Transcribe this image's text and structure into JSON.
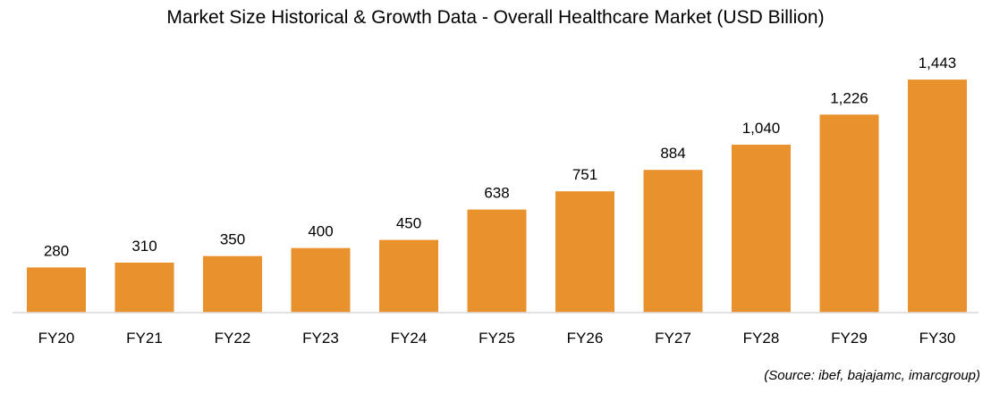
{
  "chart_data": {
    "type": "bar",
    "title": "Market Size Historical & Growth Data - Overall Healthcare Market (USD Billion)",
    "xlabel": "",
    "ylabel": "",
    "categories": [
      "FY20",
      "FY21",
      "FY22",
      "FY23",
      "FY24",
      "FY25",
      "FY26",
      "FY27",
      "FY28",
      "FY29",
      "FY30"
    ],
    "values": [
      280,
      310,
      350,
      400,
      450,
      638,
      751,
      884,
      1040,
      1226,
      1443
    ],
    "value_labels": [
      "280",
      "310",
      "350",
      "400",
      "450",
      "638",
      "751",
      "884",
      "1,040",
      "1,226",
      "1,443"
    ],
    "ylim": [
      0,
      1600
    ],
    "grid": false,
    "legend": "none",
    "bar_color": "#E8912D",
    "source": "(Source: ibef, bajajamc, imarcgroup)"
  }
}
